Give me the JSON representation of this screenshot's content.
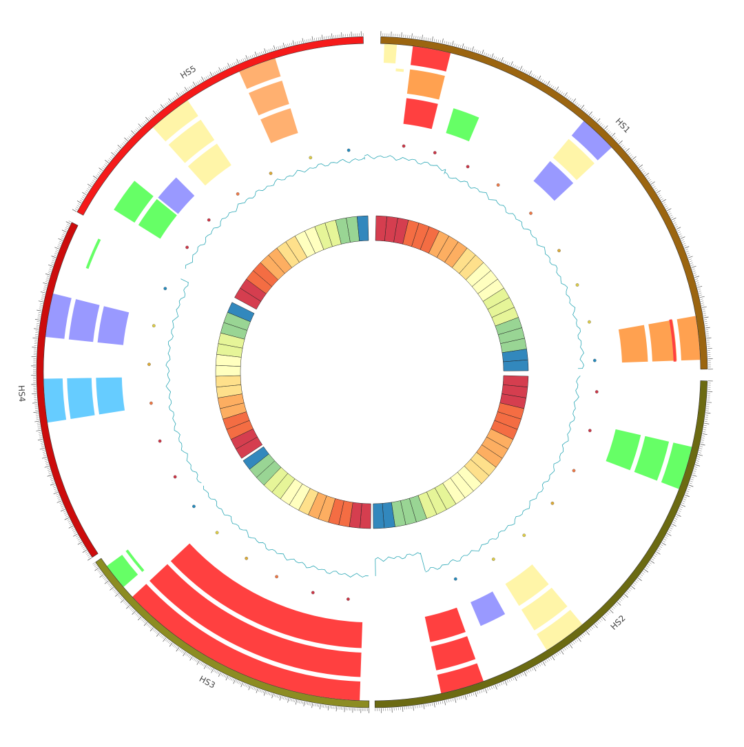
{
  "chart_data": {
    "type": "circos",
    "title": "",
    "chromosomes": [
      {
        "name": "HS1",
        "length": 250,
        "color": "#9b6510",
        "start_angle": 1.5,
        "end_angle": 89.5
      },
      {
        "name": "HS2",
        "length": 243,
        "color": "#6b6a12",
        "start_angle": 91.5,
        "end_angle": 179.5
      },
      {
        "name": "HS3",
        "length": 199,
        "color": "#8c8c22",
        "start_angle": 180.5,
        "end_angle": 235.5
      },
      {
        "name": "HS4",
        "length": 191,
        "color": "#cc0c0c",
        "start_angle": 236.5,
        "end_angle": 296.5
      },
      {
        "name": "HS5",
        "length": 181,
        "color": "#f51a1a",
        "start_angle": 298.5,
        "end_angle": 358.5
      }
    ],
    "tiles": [
      {
        "track": 1,
        "start_angle": 2,
        "end_angle": 4.5,
        "color": "#fff5a8"
      },
      {
        "track": 1,
        "start_angle": 7,
        "end_angle": 14,
        "color": "#ff4040"
      },
      {
        "track": 2,
        "start_angle": 7,
        "end_angle": 14,
        "color": "#ffa150"
      },
      {
        "track": 3,
        "start_angle": 7,
        "end_angle": 14,
        "color": "#ff4040"
      },
      {
        "track": 3,
        "start_angle": 17,
        "end_angle": 23,
        "color": "#66ff66"
      },
      {
        "track": 1,
        "start_angle": 40,
        "end_angle": 47,
        "color": "#9999ff"
      },
      {
        "track": 2,
        "start_angle": 40,
        "end_angle": 47,
        "color": "#fff5a8"
      },
      {
        "track": 3,
        "start_angle": 40,
        "end_angle": 47,
        "color": "#9999ff"
      },
      {
        "track": 1,
        "start_angle": 80,
        "end_angle": 88,
        "color": "#ffa150"
      },
      {
        "track": 2,
        "start_angle": 80,
        "end_angle": 88,
        "color": "#ffa150"
      },
      {
        "track": 3,
        "start_angle": 80,
        "end_angle": 88,
        "color": "#ffa150"
      },
      {
        "track": 1,
        "start_angle": 103,
        "end_angle": 111,
        "color": "#66ff66"
      },
      {
        "track": 2,
        "start_angle": 103,
        "end_angle": 111,
        "color": "#66ff66"
      },
      {
        "track": 3,
        "start_angle": 103,
        "end_angle": 111,
        "color": "#66ff66"
      },
      {
        "track": 1,
        "start_angle": 140,
        "end_angle": 148,
        "color": "#fff5a8"
      },
      {
        "track": 2,
        "start_angle": 140,
        "end_angle": 148,
        "color": "#fff5a8"
      },
      {
        "track": 3,
        "start_angle": 140,
        "end_angle": 148,
        "color": "#fff5a8"
      },
      {
        "track": 3,
        "start_angle": 151,
        "end_angle": 157,
        "color": "#9999ff"
      },
      {
        "track": 1,
        "start_angle": 160,
        "end_angle": 168,
        "color": "#ff4040"
      },
      {
        "track": 2,
        "start_angle": 160,
        "end_angle": 168,
        "color": "#ff4040"
      },
      {
        "track": 3,
        "start_angle": 160,
        "end_angle": 168,
        "color": "#ff4040"
      },
      {
        "track": 1,
        "start_angle": 182,
        "end_angle": 227,
        "color": "#ff4040"
      },
      {
        "track": 2,
        "start_angle": 182,
        "end_angle": 227,
        "color": "#ff4040"
      },
      {
        "track": 3,
        "start_angle": 182,
        "end_angle": 227,
        "color": "#ff4040"
      },
      {
        "track": 1,
        "start_angle": 229,
        "end_angle": 234,
        "color": "#66ff66"
      },
      {
        "track": 1,
        "start_angle": 261,
        "end_angle": 269,
        "color": "#66ccff"
      },
      {
        "track": 2,
        "start_angle": 261,
        "end_angle": 269,
        "color": "#66ccff"
      },
      {
        "track": 3,
        "start_angle": 261,
        "end_angle": 269,
        "color": "#66ccff"
      },
      {
        "track": 1,
        "start_angle": 276,
        "end_angle": 284,
        "color": "#9999ff"
      },
      {
        "track": 2,
        "start_angle": 276,
        "end_angle": 284,
        "color": "#9999ff"
      },
      {
        "track": 3,
        "start_angle": 276,
        "end_angle": 284,
        "color": "#9999ff"
      },
      {
        "track": 2,
        "start_angle": 302,
        "end_angle": 309,
        "color": "#66ff66"
      },
      {
        "track": 3,
        "start_angle": 302,
        "end_angle": 309,
        "color": "#66ff66"
      },
      {
        "track": 3,
        "start_angle": 309,
        "end_angle": 315,
        "color": "#9999ff"
      },
      {
        "track": 1,
        "start_angle": 318,
        "end_angle": 326,
        "color": "#fff5a8"
      },
      {
        "track": 2,
        "start_angle": 318,
        "end_angle": 326,
        "color": "#fff5a8"
      },
      {
        "track": 3,
        "start_angle": 318,
        "end_angle": 326,
        "color": "#fff5a8"
      },
      {
        "track": 1,
        "start_angle": 336,
        "end_angle": 343,
        "color": "#ffb070"
      },
      {
        "track": 2,
        "start_angle": 336,
        "end_angle": 343,
        "color": "#ffb070"
      },
      {
        "track": 3,
        "start_angle": 336,
        "end_angle": 343,
        "color": "#ffb070"
      }
    ],
    "thin_bands": [
      {
        "start_angle": 80,
        "end_angle": 88,
        "color": "#ff4040",
        "weight": "thin"
      },
      {
        "start_angle": 229,
        "end_angle": 234,
        "color": "#66ff66",
        "weight": "thin"
      },
      {
        "start_angle": 290,
        "end_angle": 296,
        "color": "#66ff66",
        "weight": "thin"
      },
      {
        "start_angle": 4.5,
        "end_angle": 6,
        "color": "#fff5a8",
        "weight": "thin"
      }
    ],
    "step_histogram": {
      "color": "#2aa7b5",
      "segments": [
        {
          "start_angle": 358,
          "end_angle": 20,
          "level": 0.62
        },
        {
          "start_angle": 20,
          "end_angle": 89,
          "level": 0.55
        },
        {
          "start_angle": 91,
          "end_angle": 165,
          "level": 0.48
        },
        {
          "start_angle": 165,
          "end_angle": 179,
          "level": 0.2
        },
        {
          "start_angle": 181,
          "end_angle": 236,
          "level": 0.45
        },
        {
          "start_angle": 237,
          "end_angle": 296,
          "level": 0.45
        },
        {
          "start_angle": 299,
          "end_angle": 358,
          "level": 0.58
        }
      ]
    },
    "scatter": {
      "points": [
        {
          "angle": 8,
          "level": 0.55,
          "color": "#cc3344"
        },
        {
          "angle": 16,
          "level": 0.55,
          "color": "#cc3344"
        },
        {
          "angle": 25,
          "level": 0.52,
          "color": "#cc3344"
        },
        {
          "angle": 34,
          "level": 0.5,
          "color": "#ee7744"
        },
        {
          "angle": 45,
          "level": 0.48,
          "color": "#ee7744"
        },
        {
          "angle": 57,
          "level": 0.45,
          "color": "#ddaa33"
        },
        {
          "angle": 67,
          "level": 0.45,
          "color": "#ddcc44"
        },
        {
          "angle": 77,
          "level": 0.45,
          "color": "#ddcc44"
        },
        {
          "angle": 87,
          "level": 0.45,
          "color": "#2288bb"
        },
        {
          "angle": 95,
          "level": 0.5,
          "color": "#cc3344"
        },
        {
          "angle": 105,
          "level": 0.5,
          "color": "#cc3344"
        },
        {
          "angle": 116,
          "level": 0.48,
          "color": "#ee7744"
        },
        {
          "angle": 126,
          "level": 0.45,
          "color": "#ddaa33"
        },
        {
          "angle": 137,
          "level": 0.45,
          "color": "#ddcc44"
        },
        {
          "angle": 147,
          "level": 0.45,
          "color": "#ddcc44"
        },
        {
          "angle": 158,
          "level": 0.45,
          "color": "#2288bb"
        },
        {
          "angle": 186,
          "level": 0.55,
          "color": "#cc3344"
        },
        {
          "angle": 195,
          "level": 0.55,
          "color": "#cc3344"
        },
        {
          "angle": 205,
          "level": 0.5,
          "color": "#ee7744"
        },
        {
          "angle": 214,
          "level": 0.48,
          "color": "#ddaa33"
        },
        {
          "angle": 224,
          "level": 0.45,
          "color": "#ddcc44"
        },
        {
          "angle": 233,
          "level": 0.45,
          "color": "#2288bb"
        },
        {
          "angle": 242,
          "level": 0.45,
          "color": "#cc3344"
        },
        {
          "angle": 252,
          "level": 0.45,
          "color": "#cc3344"
        },
        {
          "angle": 262,
          "level": 0.45,
          "color": "#ee7744"
        },
        {
          "angle": 272,
          "level": 0.45,
          "color": "#ddaa33"
        },
        {
          "angle": 282,
          "level": 0.45,
          "color": "#ddcc44"
        },
        {
          "angle": 292,
          "level": 0.45,
          "color": "#2288bb"
        },
        {
          "angle": 304,
          "level": 0.45,
          "color": "#cc3344"
        },
        {
          "angle": 313,
          "level": 0.45,
          "color": "#cc3344"
        },
        {
          "angle": 323,
          "level": 0.45,
          "color": "#ee7744"
        },
        {
          "angle": 333,
          "level": 0.45,
          "color": "#ddaa33"
        },
        {
          "angle": 344,
          "level": 0.45,
          "color": "#ddcc44"
        },
        {
          "angle": 354,
          "level": 0.45,
          "color": "#2288bb"
        }
      ]
    },
    "heatmap_ring": {
      "palette": [
        "#d53e4f",
        "#f46d43",
        "#fdae61",
        "#fee08b",
        "#ffffbf",
        "#e6f598",
        "#99d594",
        "#3288bd"
      ],
      "segments": [
        {
          "start_angle": 1.5,
          "end_angle": 89.5,
          "bins": 22
        },
        {
          "start_angle": 91.5,
          "end_angle": 179.5,
          "bins": 22
        },
        {
          "start_angle": 180.5,
          "end_angle": 235.5,
          "bins": 14
        },
        {
          "start_angle": 236.5,
          "end_angle": 296.5,
          "bins": 15
        },
        {
          "start_angle": 298.5,
          "end_angle": 358.5,
          "bins": 15
        }
      ]
    }
  }
}
